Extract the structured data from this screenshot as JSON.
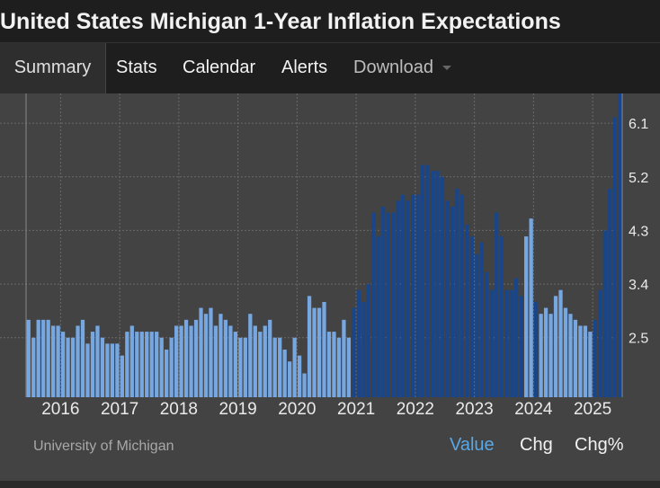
{
  "title": "United States Michigan 1-Year Inflation Expectations",
  "nav": {
    "tabs": [
      {
        "label": "Summary"
      },
      {
        "label": "Stats"
      },
      {
        "label": "Calendar"
      },
      {
        "label": "Alerts"
      },
      {
        "label": "Download"
      }
    ]
  },
  "footer": {
    "source": "University of Michigan",
    "modes": [
      "Value",
      "Chg",
      "Chg%"
    ]
  },
  "colors": {
    "bar_light": "#77a7e0",
    "bar_dark": "#19468a",
    "background": "#434343",
    "active_mode": "#5aa7e6"
  },
  "chart_data": {
    "type": "bar",
    "grid": true,
    "ylim": [
      1.5,
      6.6
    ],
    "yticks": [
      "2.5",
      "3.4",
      "4.3",
      "5.2",
      "6.1"
    ],
    "xticks": [
      "2016",
      "2017",
      "2018",
      "2019",
      "2020",
      "2021",
      "2022",
      "2023",
      "2024",
      "2025"
    ],
    "x_start": "2015-06",
    "values": [
      2.8,
      2.5,
      2.8,
      2.8,
      2.8,
      2.7,
      2.7,
      2.6,
      2.5,
      2.5,
      2.7,
      2.8,
      2.4,
      2.6,
      2.7,
      2.5,
      2.4,
      2.4,
      2.4,
      2.2,
      2.6,
      2.7,
      2.6,
      2.6,
      2.6,
      2.6,
      2.6,
      2.5,
      2.3,
      2.5,
      2.7,
      2.7,
      2.8,
      2.7,
      2.8,
      3.0,
      2.9,
      3.0,
      2.7,
      2.9,
      2.8,
      2.7,
      2.6,
      2.5,
      2.5,
      2.9,
      2.7,
      2.6,
      2.7,
      2.8,
      2.5,
      2.5,
      2.3,
      2.1,
      2.5,
      2.2,
      1.9,
      3.2,
      3.0,
      3.0,
      3.1,
      2.6,
      2.6,
      2.5,
      2.8,
      2.5,
      3.0,
      3.3,
      3.1,
      3.4,
      4.6,
      4.2,
      4.7,
      4.6,
      4.6,
      4.8,
      4.9,
      4.8,
      4.9,
      4.9,
      5.4,
      5.4,
      5.3,
      5.3,
      5.2,
      4.8,
      4.7,
      5.0,
      4.9,
      4.4,
      4.2,
      3.9,
      4.1,
      3.6,
      3.3,
      4.6,
      4.2,
      3.3,
      3.3,
      3.5,
      3.2,
      4.2,
      4.5,
      3.1,
      2.9,
      3.0,
      2.9,
      3.2,
      3.3,
      3.0,
      2.9,
      2.8,
      2.7,
      2.7,
      2.6,
      2.8,
      3.3,
      4.3,
      5.0,
      6.2,
      6.6
    ],
    "dark_ranges": [
      [
        66,
        100
      ],
      [
        103,
        103
      ],
      [
        115,
        120
      ]
    ]
  }
}
